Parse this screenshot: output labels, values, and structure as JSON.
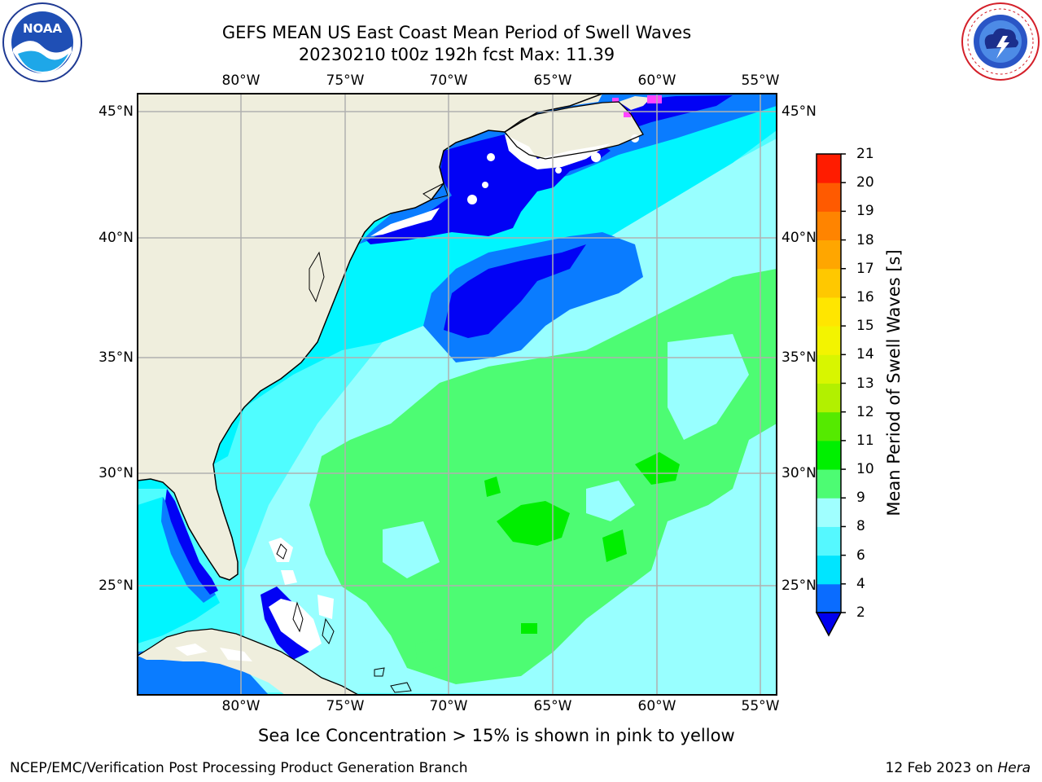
{
  "title": {
    "line1": "GEFS MEAN US East Coast Mean Period of Swell Waves",
    "line2": "20230210 t00z 192h fcst   Max: 11.39"
  },
  "map": {
    "lon_labels": [
      "80°W",
      "75°W",
      "70°W",
      "65°W",
      "60°W",
      "55°W"
    ],
    "lat_labels": [
      "45°N",
      "40°N",
      "35°N",
      "30°N",
      "25°N"
    ],
    "colors": {
      "land": "#efeedd",
      "ocean_4_6": "#00f5ff",
      "ocean_6_8": "#4ffdff",
      "ocean_8_9": "#98ffff",
      "ocean_9_10": "#4dfc73",
      "ocean_10_11": "#00ee00",
      "ocean_2_4": "#0a7cff",
      "ocean_lt2": "#0202f5",
      "sea_ice": "#ff44ff",
      "grid": "#b0b0b0"
    }
  },
  "colorbar": {
    "ticks": [
      "2",
      "4",
      "6",
      "8",
      "9",
      "10",
      "11",
      "12",
      "13",
      "14",
      "15",
      "16",
      "17",
      "18",
      "19",
      "20",
      "21"
    ],
    "colors": [
      "#0a6cff",
      "#00e5ff",
      "#55f8ff",
      "#a0ffff",
      "#4dfc73",
      "#00f000",
      "#55ea00",
      "#b2f000",
      "#d8f600",
      "#f3f400",
      "#ffe600",
      "#ffc800",
      "#ffa600",
      "#ff8400",
      "#ff5a00",
      "#ff1c00"
    ],
    "under_color": "#0000ee",
    "label": "Mean Period of Swell Waves [s]"
  },
  "footnote": "Sea Ice Concentration > 15% is shown in pink to yellow",
  "credit_left": "NCEP/EMC/Verification Post Processing Product Generation Branch",
  "credit_right_prefix": "12 Feb 2023 on ",
  "credit_right_host": "Hera",
  "logos": {
    "left": "noaa-logo",
    "right": "nws-logo"
  }
}
